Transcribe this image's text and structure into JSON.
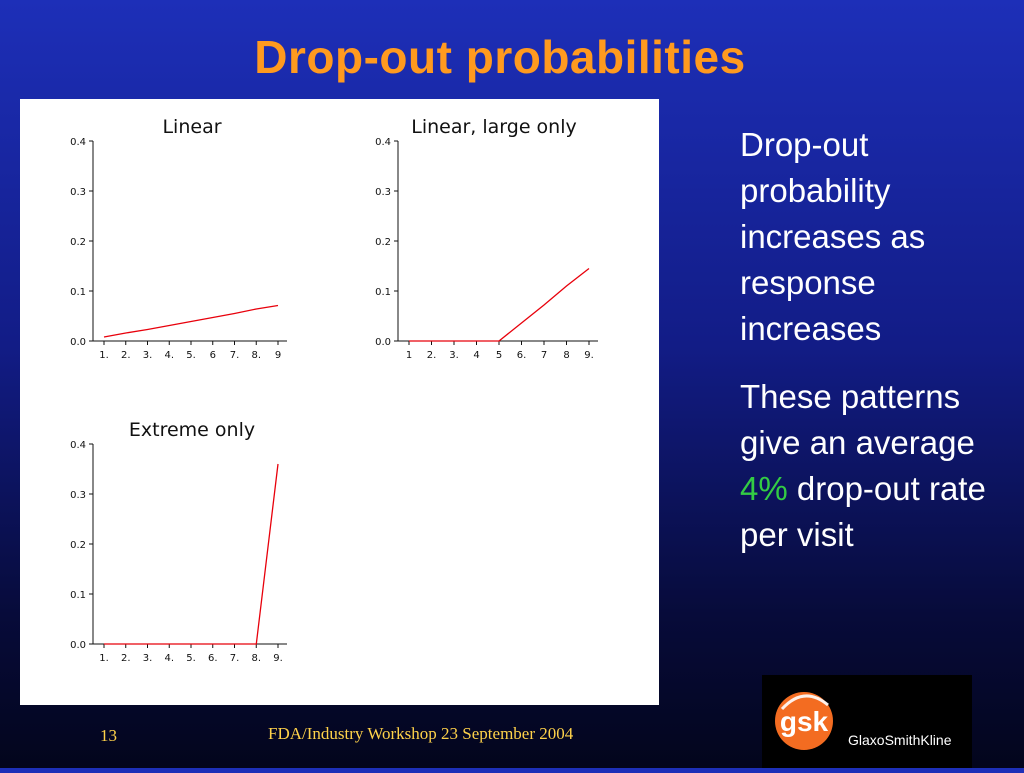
{
  "slide": {
    "title": "Drop-out probabilities",
    "footer_page": "13",
    "footer_text": "FDA/Industry Workshop 23 September 2004"
  },
  "side_text": {
    "p1": "Drop-out probability increases as response increases",
    "p2_before": "These patterns give an average ",
    "p2_highlight": "4%",
    "p2_after": " drop-out rate per visit",
    "highlight_color": "#33cc44"
  },
  "logo": {
    "mark": "gsk",
    "name": "GlaxoSmithKline"
  },
  "chart_data": [
    {
      "type": "line",
      "title": "Linear",
      "x": [
        1,
        2,
        3,
        4,
        5,
        6,
        7,
        8,
        9
      ],
      "xticklabels": [
        "1.",
        "2.",
        "3.",
        "4.",
        "5.",
        "6",
        "7.",
        "8.",
        "9"
      ],
      "values": [
        0.008,
        0.016,
        0.023,
        0.031,
        0.039,
        0.047,
        0.055,
        0.064,
        0.071
      ],
      "ylim": [
        0,
        0.4
      ],
      "yticklabels": [
        "0.0",
        "0.1",
        "0.2",
        "0.3",
        "0.4"
      ],
      "line_color": "#e8000b",
      "grid": false
    },
    {
      "type": "line",
      "title": "Linear, large only",
      "x": [
        1,
        2,
        3,
        4,
        5,
        6,
        7,
        8,
        9
      ],
      "xticklabels": [
        "1",
        "2.",
        "3.",
        "4",
        "5",
        "6.",
        "7",
        "8",
        "9."
      ],
      "values": [
        0,
        0,
        0,
        0,
        0,
        0.036,
        0.072,
        0.11,
        0.145
      ],
      "ylim": [
        0,
        0.4
      ],
      "yticklabels": [
        "0.0",
        "0.1",
        "0.2",
        "0.3",
        "0.4"
      ],
      "line_color": "#e8000b",
      "grid": false
    },
    {
      "type": "line",
      "title": "Extreme only",
      "x": [
        1,
        2,
        3,
        4,
        5,
        6,
        7,
        8,
        9
      ],
      "xticklabels": [
        "1.",
        "2.",
        "3.",
        "4.",
        "5.",
        "6.",
        "7.",
        "8.",
        "9."
      ],
      "values": [
        0,
        0,
        0,
        0,
        0,
        0,
        0,
        0,
        0.36
      ],
      "ylim": [
        0,
        0.4
      ],
      "yticklabels": [
        "0.0",
        "0.1",
        "0.2",
        "0.3",
        "0.4"
      ],
      "line_color": "#e8000b",
      "grid": false
    }
  ]
}
